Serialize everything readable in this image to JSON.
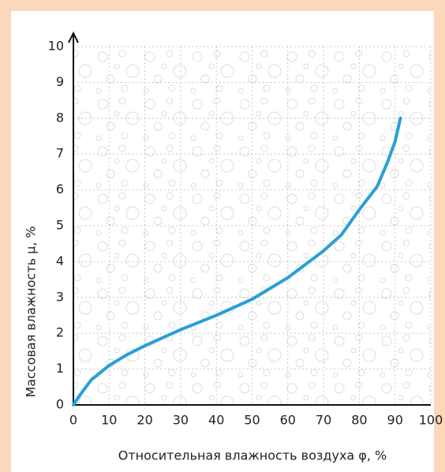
{
  "chart_data": {
    "type": "line",
    "xlabel": "Относительная влажность воздуха φ, %",
    "ylabel": "Массовая влажность μ, %",
    "x": [
      0,
      2,
      5,
      10,
      15,
      20,
      30,
      40,
      50,
      60,
      70,
      75,
      80,
      85,
      88,
      90,
      91.5
    ],
    "series": [
      {
        "name": "μ",
        "color": "#2a9fd6",
        "values": [
          0,
          0.3,
          0.7,
          1.1,
          1.4,
          1.65,
          2.1,
          2.5,
          2.95,
          3.55,
          4.3,
          4.75,
          5.45,
          6.1,
          6.8,
          7.35,
          8
        ]
      }
    ],
    "xlim": [
      0,
      100
    ],
    "ylim": [
      0,
      10
    ],
    "xticks": [
      0,
      10,
      20,
      30,
      40,
      50,
      60,
      70,
      80,
      90,
      100
    ],
    "yticks": [
      0,
      1,
      2,
      3,
      4,
      5,
      6,
      7,
      8,
      9,
      10
    ],
    "grid": true
  }
}
